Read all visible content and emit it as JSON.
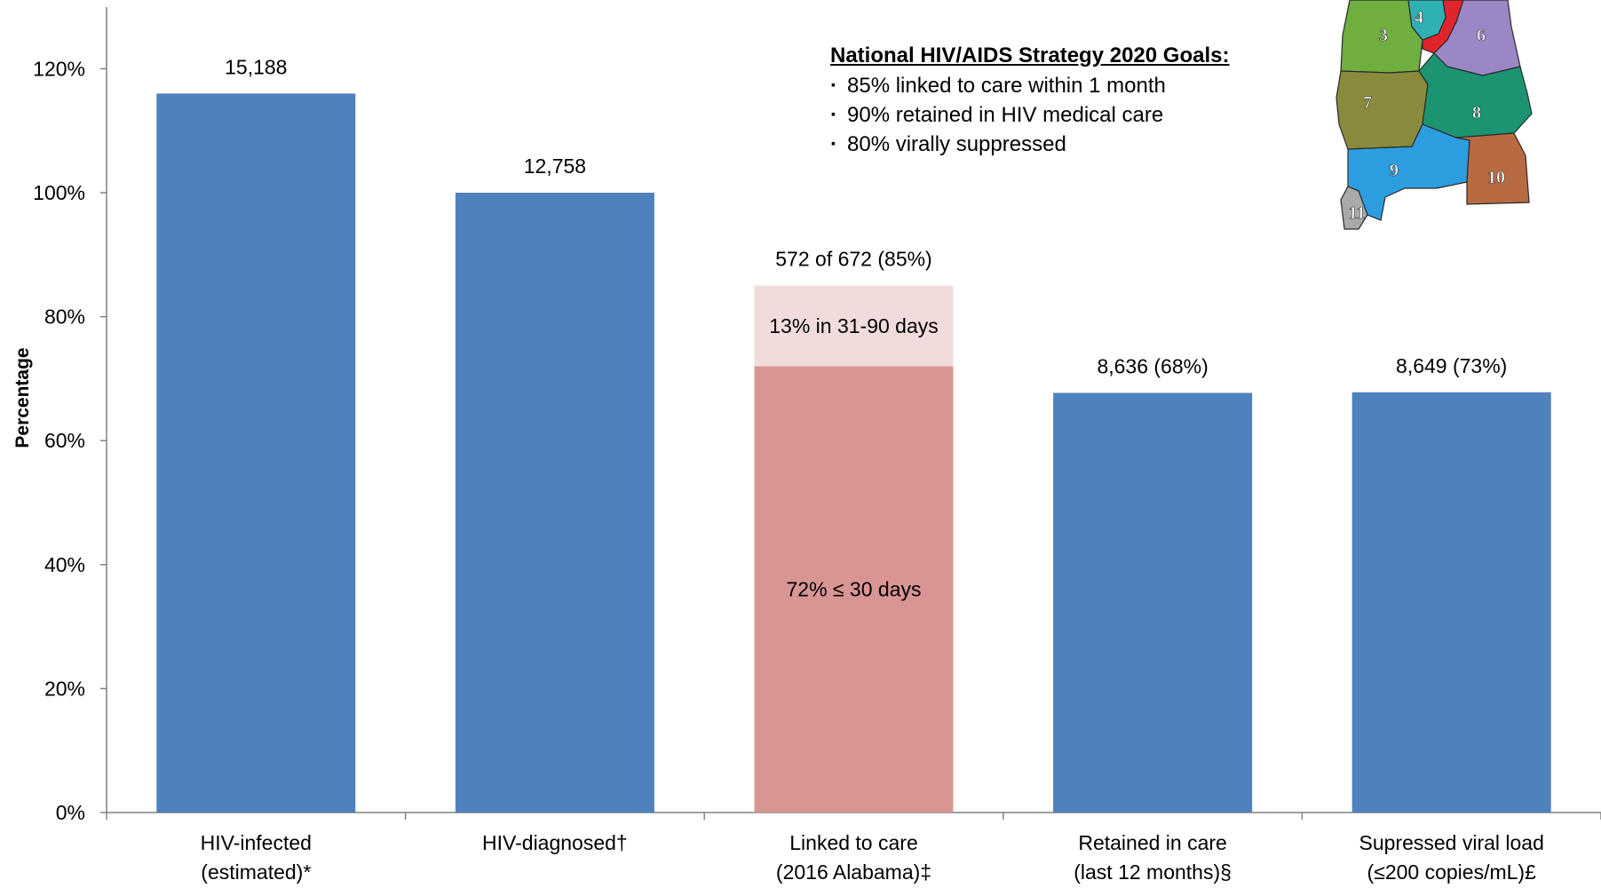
{
  "chart_data": {
    "type": "bar",
    "ylabel": "Percentage",
    "ylim": [
      0,
      130
    ],
    "yticks": [
      0,
      20,
      40,
      60,
      80,
      100,
      120
    ],
    "ytick_labels": [
      "0%",
      "20%",
      "40%",
      "60%",
      "80%",
      "100%",
      "120%"
    ],
    "grid": false,
    "categories": [
      [
        "HIV-infected",
        "(estimated)*"
      ],
      [
        "HIV-diagnosed†",
        ""
      ],
      [
        "Linked to care",
        "(2016 Alabama)‡"
      ],
      [
        "Retained in care",
        "(last 12 months)§"
      ],
      [
        "Supressed viral load",
        "(≤200 copies/mL)£"
      ]
    ],
    "series": [
      {
        "values": [
          116,
          100,
          72,
          67.7,
          67.8
        ],
        "color": "#4f81bd"
      },
      {
        "values": [
          0,
          0,
          13,
          0,
          0
        ],
        "color": "#f2dcdb"
      }
    ],
    "data_labels": [
      "15,188",
      "12,758",
      "572 of 672  (85%)",
      "8,636  (68%)",
      "8,649 (73%)"
    ],
    "segment_labels": [
      {
        "category_index": 2,
        "series_index": 0,
        "text": "72% ≤ 30 days",
        "color": "#d99594"
      },
      {
        "category_index": 2,
        "series_index": 1,
        "text": "13% in 31-90 days"
      }
    ]
  },
  "goals": {
    "title": "National HIV/AIDS Strategy 2020 Goals:",
    "items": [
      "85% linked to care within 1 month",
      "90% retained in HIV medical care",
      "80% virally suppressed"
    ]
  },
  "map": {
    "icon": "alabama-region-map",
    "regions": [
      {
        "label": "3",
        "color": "#6fae3f"
      },
      {
        "label": "4",
        "color": "#2fb1b3"
      },
      {
        "label": "6",
        "color": "#9b86c6"
      },
      {
        "label": "7",
        "color": "#8a8a3c"
      },
      {
        "label": "8",
        "color": "#1c9472"
      },
      {
        "label": "9",
        "color": "#2c9ee0"
      },
      {
        "label": "10",
        "color": "#b86a42"
      },
      {
        "label": "11",
        "color": "#a9a9a9"
      }
    ]
  }
}
